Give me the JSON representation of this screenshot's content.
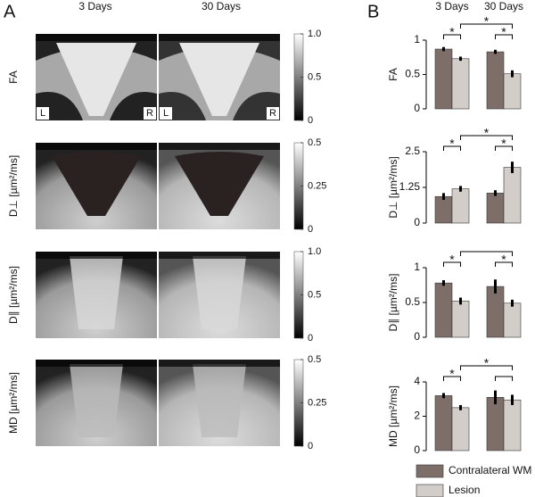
{
  "panel_labels": [
    "A",
    "B"
  ],
  "image_panel": {
    "columns": [
      "3 Days",
      "30 Days"
    ],
    "orientation_labels": [
      "L",
      "R",
      "L",
      "R"
    ],
    "rows": [
      {
        "label": "FA",
        "colorbar_lim": [
          0,
          1
        ],
        "colorbar_ticks": [
          0,
          0.5,
          {
            "value": 1,
            "label": "1.0"
          }
        ]
      },
      {
        "label": "D⊥ [µm²/ms]",
        "colorbar_lim": [
          0,
          0.5
        ],
        "colorbar_ticks": [
          0,
          0.25,
          0.5
        ]
      },
      {
        "label": "D∥ [µm²/ms]",
        "colorbar_lim": [
          0,
          1
        ],
        "colorbar_ticks": [
          0,
          0.5,
          {
            "value": 1,
            "label": "1.0"
          }
        ]
      },
      {
        "label": "MD [µm²/ms]",
        "colorbar_lim": [
          0,
          0.5
        ],
        "colorbar_ticks": [
          0,
          0.25,
          0.5
        ]
      }
    ]
  },
  "chart_data": [
    {
      "type": "bar",
      "y_label": "FA",
      "categories": [
        "3 Days",
        "30 Days"
      ],
      "ylim": [
        0,
        1
      ],
      "yticks": [
        0,
        0.5,
        1
      ],
      "series": [
        {
          "name": "Contralateral WM",
          "color": "#7d6e6a",
          "values": [
            0.87,
            0.83
          ],
          "errors": [
            0.03,
            0.03
          ]
        },
        {
          "name": "Lesion",
          "color": "#d3cdca",
          "values": [
            0.73,
            0.51
          ],
          "errors": [
            0.03,
            0.05
          ]
        }
      ],
      "annotations": [
        "*",
        "*",
        "*"
      ]
    },
    {
      "type": "bar",
      "y_label": "D⊥ [µm²/ms]",
      "categories": [
        "3 Days",
        "30 Days"
      ],
      "ylim": [
        0,
        2.5
      ],
      "yticks": [
        0,
        1.25,
        2.5
      ],
      "series": [
        {
          "name": "Contralateral WM",
          "color": "#7d6e6a",
          "values": [
            0.93,
            1.05
          ],
          "errors": [
            0.12,
            0.1
          ]
        },
        {
          "name": "Lesion",
          "color": "#d3cdca",
          "values": [
            1.2,
            1.95
          ],
          "errors": [
            0.1,
            0.2
          ]
        }
      ],
      "annotations": [
        "*",
        "*",
        "*"
      ]
    },
    {
      "type": "bar",
      "y_label": "D∥ [µm²/ms]",
      "categories": [
        "3 Days",
        "30 Days"
      ],
      "ylim": [
        0,
        1
      ],
      "yticks": [
        0,
        0.5,
        1
      ],
      "series": [
        {
          "name": "Contralateral WM",
          "color": "#7d6e6a",
          "values": [
            0.78,
            0.73
          ],
          "errors": [
            0.04,
            0.1
          ]
        },
        {
          "name": "Lesion",
          "color": "#d3cdca",
          "values": [
            0.52,
            0.49
          ],
          "errors": [
            0.05,
            0.05
          ]
        }
      ],
      "annotations": [
        "*",
        "*"
      ]
    },
    {
      "type": "bar",
      "y_label": "MD [µm²/ms]",
      "categories": [
        "3 Days",
        "30 Days"
      ],
      "ylim": [
        0,
        4
      ],
      "yticks": [
        0,
        2,
        4
      ],
      "series": [
        {
          "name": "Contralateral WM",
          "color": "#7d6e6a",
          "values": [
            3.2,
            3.1
          ],
          "errors": [
            0.15,
            0.4
          ]
        },
        {
          "name": "Lesion",
          "color": "#d3cdca",
          "values": [
            2.5,
            2.95
          ],
          "errors": [
            0.15,
            0.3
          ]
        }
      ],
      "annotations": [
        "*",
        "*"
      ]
    }
  ]
}
